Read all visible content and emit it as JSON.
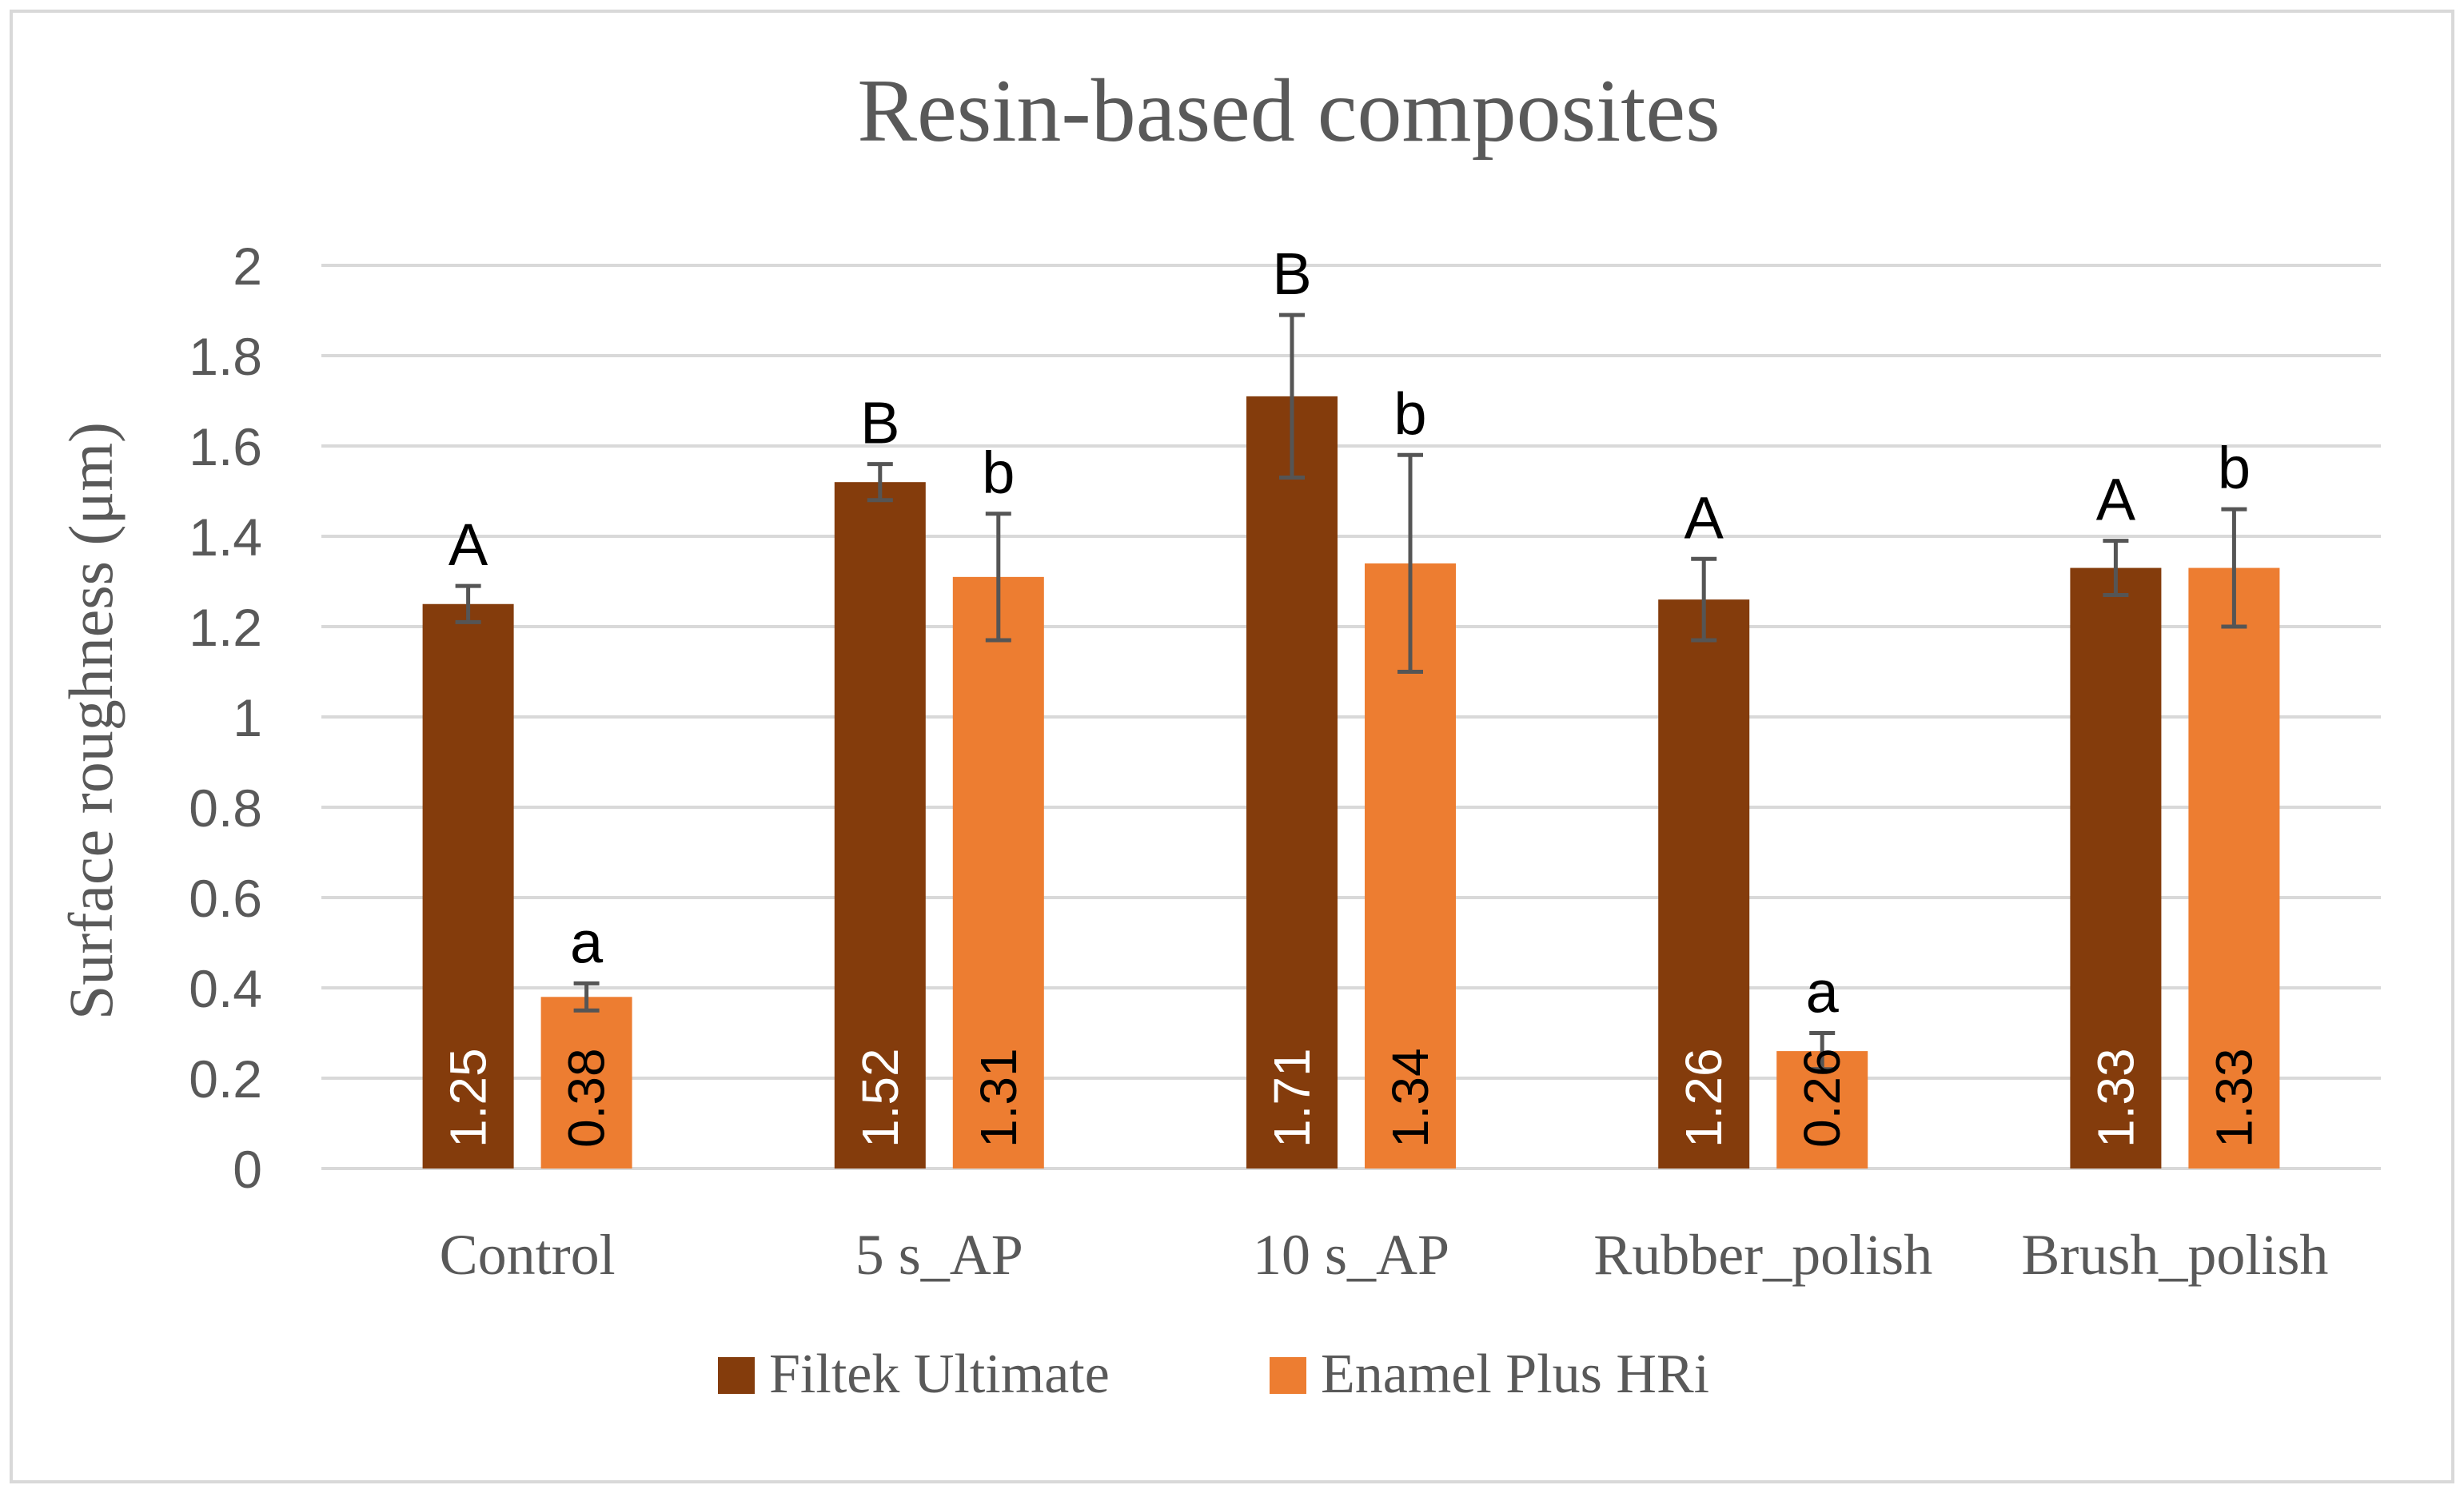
{
  "chart_data": {
    "type": "bar",
    "title": "Resin-based composites",
    "xlabel": "",
    "ylabel": "Surface roughness (μm)",
    "ylim": [
      0,
      2
    ],
    "yticks": [
      0,
      0.2,
      0.4,
      0.6,
      0.8,
      1,
      1.2,
      1.4,
      1.6,
      1.8,
      2
    ],
    "ytick_labels": [
      "0",
      "0.2",
      "0.4",
      "0.6",
      "0.8",
      "1",
      "1.2",
      "1.4",
      "1.6",
      "1.8",
      "2"
    ],
    "grid": true,
    "legend_position": "bottom",
    "categories": [
      "Control",
      "5 s_AP",
      "10 s_AP",
      "Rubber_polish",
      "Brush_polish"
    ],
    "series": [
      {
        "name": "Filtek Ultimate",
        "color": "#843C0C",
        "values": [
          1.25,
          1.52,
          1.71,
          1.26,
          1.33
        ],
        "value_labels": [
          "1.25",
          "1.52",
          "1.71",
          "1.26",
          "1.33"
        ],
        "errors": [
          0.04,
          0.04,
          0.18,
          0.09,
          0.06
        ],
        "group_letters": [
          "A",
          "B",
          "B",
          "A",
          "A"
        ]
      },
      {
        "name": "Enamel Plus HRi",
        "color": "#ED7D31",
        "values": [
          0.38,
          1.31,
          1.34,
          0.26,
          1.33
        ],
        "value_labels": [
          "0.38",
          "1.31",
          "1.34",
          "0.26",
          "1.33"
        ],
        "errors": [
          0.03,
          0.14,
          0.24,
          0.04,
          0.13
        ],
        "group_letters": [
          "a",
          "b",
          "b",
          "a",
          "b"
        ]
      }
    ]
  }
}
